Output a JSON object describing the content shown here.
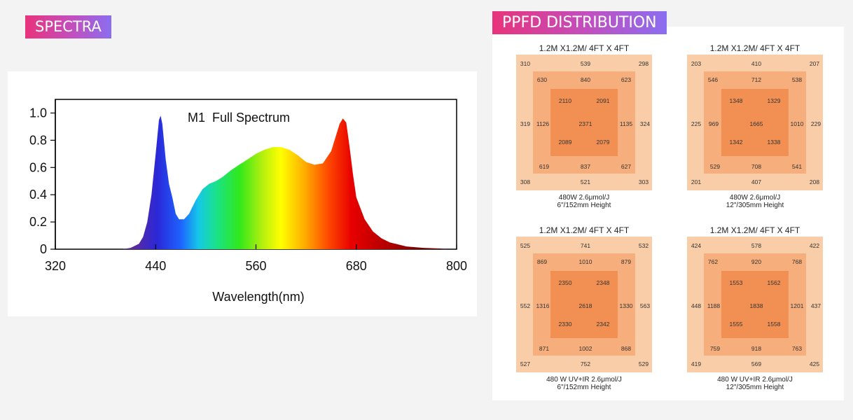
{
  "headers": {
    "spectra": "SPECTRA",
    "ppfd": "PPFD DISTRIBUTION"
  },
  "chart_data": [
    {
      "type": "area",
      "title": "M1  Full Spectrum",
      "xlabel": "Wavelength(nm)",
      "ylabel": "",
      "xlim": [
        320,
        800
      ],
      "ylim": [
        0,
        1.1
      ],
      "x_ticks": [
        "320",
        "440",
        "560",
        "680",
        "800"
      ],
      "y_ticks": [
        "0",
        "0.2",
        "0.4",
        "0.6",
        "0.8",
        "1.0"
      ],
      "fill": "visible-spectrum-gradient",
      "series": [
        {
          "x": [
            400,
            410,
            420,
            425,
            430,
            435,
            440,
            444,
            446,
            448,
            452,
            456,
            460,
            464,
            468,
            474,
            480,
            488,
            496,
            504,
            512,
            520,
            530,
            540,
            550,
            560,
            570,
            580,
            590,
            600,
            610,
            620,
            630,
            640,
            650,
            656,
            660,
            664,
            668,
            672,
            676,
            680,
            690,
            700,
            710,
            720,
            740,
            760,
            780,
            790
          ],
          "y": [
            0,
            0.01,
            0.04,
            0.09,
            0.2,
            0.4,
            0.7,
            0.95,
            0.98,
            0.92,
            0.66,
            0.48,
            0.38,
            0.26,
            0.22,
            0.22,
            0.26,
            0.36,
            0.44,
            0.48,
            0.5,
            0.53,
            0.58,
            0.62,
            0.66,
            0.7,
            0.73,
            0.75,
            0.75,
            0.73,
            0.69,
            0.64,
            0.62,
            0.63,
            0.72,
            0.84,
            0.92,
            0.96,
            0.93,
            0.75,
            0.55,
            0.38,
            0.22,
            0.13,
            0.08,
            0.05,
            0.02,
            0.01,
            0.005,
            0
          ]
        }
      ]
    },
    {
      "type": "heatmap",
      "title": "1.2M X1.2M/ 4FT X 4FT",
      "rings": {
        "outer": [
          "310",
          "539",
          "298",
          "324",
          "303",
          "521",
          "308",
          "319"
        ],
        "middle": [
          "630",
          "840",
          "623",
          "1135",
          "627",
          "837",
          "619",
          "1126"
        ],
        "inner": [
          "2110",
          "2091",
          "2079",
          "2089"
        ],
        "center": "2371"
      },
      "caption_line1": "480W  2.6μmol/J",
      "caption_line2": "6\"/152mm Height"
    },
    {
      "type": "heatmap",
      "title": "1.2M X1.2M/ 4FT X 4FT",
      "rings": {
        "outer": [
          "203",
          "410",
          "207",
          "229",
          "208",
          "407",
          "201",
          "225"
        ],
        "middle": [
          "546",
          "712",
          "538",
          "1010",
          "541",
          "708",
          "529",
          "969"
        ],
        "inner": [
          "1348",
          "1329",
          "1338",
          "1342"
        ],
        "center": "1665"
      },
      "caption_line1": "480W  2.6μmol/J",
      "caption_line2": "12\"/305mm Height"
    },
    {
      "type": "heatmap",
      "title": "1.2M X1.2M/ 4FT X 4FT",
      "rings": {
        "outer": [
          "525",
          "741",
          "532",
          "563",
          "529",
          "752",
          "527",
          "552"
        ],
        "middle": [
          "869",
          "1010",
          "879",
          "1330",
          "868",
          "1002",
          "871",
          "1316"
        ],
        "inner": [
          "2350",
          "2348",
          "2342",
          "2330"
        ],
        "center": "2618"
      },
      "caption_line1": "480 W UV+IR  2.6μmol/J",
      "caption_line2": "6\"/152mm Height"
    },
    {
      "type": "heatmap",
      "title": "1.2M X1.2M/ 4FT X 4FT",
      "rings": {
        "outer": [
          "424",
          "578",
          "422",
          "437",
          "425",
          "569",
          "419",
          "448"
        ],
        "middle": [
          "762",
          "920",
          "768",
          "1201",
          "763",
          "918",
          "759",
          "1188"
        ],
        "inner": [
          "1553",
          "1562",
          "1558",
          "1555"
        ],
        "center": "1838"
      },
      "caption_line1": "480 W UV+IR  2.6μmol/J",
      "caption_line2": "12\"/305mm Height"
    }
  ]
}
